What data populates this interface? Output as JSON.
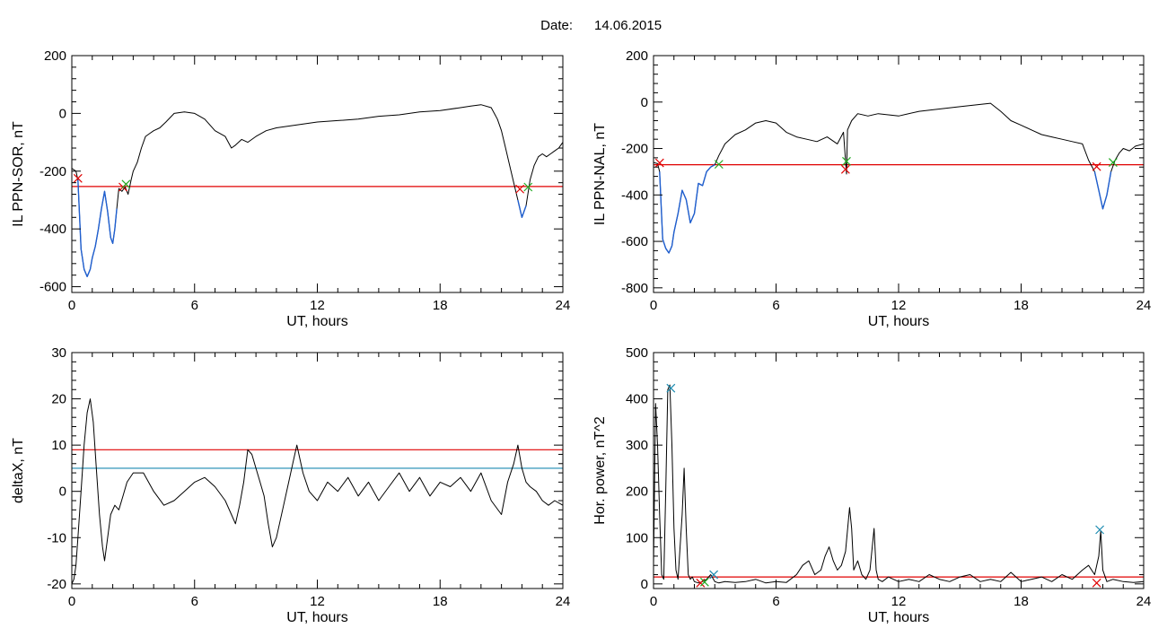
{
  "figure": {
    "date_label": "Date:",
    "date_value": "14.06.2015"
  },
  "chart_data": [
    {
      "type": "line",
      "xlabel": "UT, hours",
      "ylabel": "IL PPN-SOR, nT",
      "xlim": [
        0,
        24
      ],
      "ylim": [
        -620,
        200
      ],
      "xticks": [
        0,
        6,
        12,
        18,
        24
      ],
      "yticks": [
        -600,
        -400,
        -200,
        0,
        200
      ],
      "series": [
        {
          "color": "#000000",
          "x": [
            0,
            0.2,
            0.3,
            0.45,
            0.6,
            0.75,
            0.9,
            1.0,
            1.15,
            1.3,
            1.45,
            1.6,
            1.75,
            1.9,
            2.0,
            2.1,
            2.2,
            2.3,
            2.45,
            2.6,
            2.75,
            2.9,
            3.0,
            3.2,
            3.4,
            3.6,
            3.8,
            4.0,
            4.3,
            4.6,
            5.0,
            5.5,
            6.0,
            6.5,
            7.0,
            7.5,
            7.8,
            8.0,
            8.3,
            8.6,
            9.0,
            9.5,
            10.0,
            11.0,
            12.0,
            13.0,
            14.0,
            15.0,
            16.0,
            17.0,
            18.0,
            19.0,
            19.5,
            20.0,
            20.5,
            20.8,
            21.0,
            21.2,
            21.4,
            21.6,
            21.8,
            22.0,
            22.2,
            22.4,
            22.6,
            22.8,
            23.0,
            23.2,
            23.4,
            23.6,
            23.8,
            24.0
          ],
          "y": [
            -190,
            -200,
            -230,
            -470,
            -540,
            -565,
            -540,
            -500,
            -460,
            -400,
            -330,
            -270,
            -340,
            -430,
            -450,
            -400,
            -330,
            -260,
            -270,
            -255,
            -280,
            -230,
            -200,
            -170,
            -120,
            -80,
            -70,
            -60,
            -50,
            -30,
            0,
            5,
            0,
            -20,
            -60,
            -80,
            -120,
            -110,
            -90,
            -100,
            -80,
            -60,
            -50,
            -40,
            -30,
            -25,
            -20,
            -10,
            -5,
            5,
            10,
            20,
            25,
            30,
            20,
            -20,
            -60,
            -120,
            -180,
            -240,
            -300,
            -360,
            -320,
            -230,
            -180,
            -150,
            -140,
            -150,
            -140,
            -130,
            -120,
            -100
          ]
        },
        {
          "color": "#1f5fd0",
          "x": [
            0.3,
            0.45,
            0.6,
            0.75,
            0.9,
            1.0,
            1.15,
            1.3,
            1.45,
            1.6,
            1.75,
            1.9,
            2.0,
            2.1,
            2.2
          ],
          "y": [
            -230,
            -470,
            -540,
            -565,
            -540,
            -500,
            -460,
            -400,
            -330,
            -270,
            -340,
            -430,
            -450,
            -400,
            -330
          ]
        },
        {
          "color": "#1f5fd0",
          "x": [
            21.8,
            22.0,
            22.2
          ],
          "y": [
            -300,
            -360,
            -320
          ]
        }
      ],
      "thresholds": [
        {
          "y": -253,
          "color": "#e00000"
        }
      ],
      "markers": [
        {
          "x": 0.3,
          "y": -225,
          "color": "#e00000"
        },
        {
          "x": 2.5,
          "y": -255,
          "color": "#e00000"
        },
        {
          "x": 2.65,
          "y": -245,
          "color": "#22aa22"
        },
        {
          "x": 21.9,
          "y": -262,
          "color": "#e00000"
        },
        {
          "x": 22.3,
          "y": -255,
          "color": "#22aa22"
        }
      ]
    },
    {
      "type": "line",
      "xlabel": "UT, hours",
      "ylabel": "IL PPN-NAL, nT",
      "xlim": [
        0,
        24
      ],
      "ylim": [
        -820,
        200
      ],
      "xticks": [
        0,
        6,
        12,
        18,
        24
      ],
      "yticks": [
        -800,
        -600,
        -400,
        -200,
        0,
        200
      ],
      "series": [
        {
          "color": "#000000",
          "x": [
            0,
            0.2,
            0.3,
            0.45,
            0.6,
            0.75,
            0.9,
            1.0,
            1.2,
            1.4,
            1.6,
            1.8,
            2.0,
            2.2,
            2.4,
            2.6,
            2.8,
            3.0,
            3.2,
            3.5,
            4.0,
            4.5,
            5.0,
            5.5,
            6.0,
            6.5,
            7.0,
            7.5,
            8.0,
            8.5,
            9.0,
            9.3,
            9.45,
            9.5,
            9.7,
            10.0,
            10.5,
            11.0,
            12.0,
            13.0,
            14.0,
            15.0,
            16.0,
            16.5,
            17.0,
            17.5,
            18.0,
            18.5,
            19.0,
            19.5,
            20.0,
            20.5,
            21.0,
            21.3,
            21.6,
            21.8,
            22.0,
            22.2,
            22.4,
            22.6,
            22.8,
            23.0,
            23.3,
            23.6,
            24.0
          ],
          "y": [
            -260,
            -265,
            -300,
            -590,
            -630,
            -650,
            -620,
            -560,
            -480,
            -380,
            -420,
            -520,
            -480,
            -350,
            -360,
            -300,
            -280,
            -270,
            -230,
            -180,
            -140,
            -120,
            -90,
            -80,
            -90,
            -130,
            -150,
            -160,
            -170,
            -150,
            -180,
            -130,
            -310,
            -120,
            -80,
            -50,
            -60,
            -50,
            -60,
            -40,
            -30,
            -20,
            -10,
            -5,
            -40,
            -80,
            -100,
            -120,
            -140,
            -150,
            -160,
            -170,
            -180,
            -250,
            -300,
            -380,
            -460,
            -400,
            -300,
            -250,
            -220,
            -200,
            -210,
            -190,
            -180
          ]
        },
        {
          "color": "#1f5fd0",
          "x": [
            0.3,
            0.45,
            0.6,
            0.75,
            0.9,
            1.0,
            1.2,
            1.4,
            1.6,
            1.8,
            2.0,
            2.2,
            2.4,
            2.6,
            2.8,
            3.0
          ],
          "y": [
            -300,
            -590,
            -630,
            -650,
            -620,
            -560,
            -480,
            -380,
            -420,
            -520,
            -480,
            -350,
            -360,
            -300,
            -280,
            -270
          ]
        },
        {
          "color": "#1f5fd0",
          "x": [
            21.6,
            21.8,
            22.0,
            22.2,
            22.4
          ],
          "y": [
            -300,
            -380,
            -460,
            -400,
            -300
          ]
        }
      ],
      "thresholds": [
        {
          "y": -270,
          "color": "#e00000"
        }
      ],
      "markers": [
        {
          "x": 0.3,
          "y": -262,
          "color": "#e00000"
        },
        {
          "x": 3.2,
          "y": -268,
          "color": "#22aa22"
        },
        {
          "x": 9.4,
          "y": -290,
          "color": "#e00000"
        },
        {
          "x": 9.45,
          "y": -255,
          "color": "#22aa22"
        },
        {
          "x": 21.7,
          "y": -278,
          "color": "#e00000"
        },
        {
          "x": 22.5,
          "y": -260,
          "color": "#22aa22"
        }
      ]
    },
    {
      "type": "line",
      "xlabel": "UT, hours",
      "ylabel": "deltaX, nT",
      "xlim": [
        0,
        24
      ],
      "ylim": [
        -21,
        30
      ],
      "xticks": [
        0,
        6,
        12,
        18,
        24
      ],
      "yticks": [
        -20,
        -10,
        0,
        10,
        20,
        30
      ],
      "series": [
        {
          "color": "#000000",
          "x": [
            0,
            0.1,
            0.2,
            0.3,
            0.45,
            0.6,
            0.75,
            0.9,
            1.05,
            1.2,
            1.35,
            1.5,
            1.6,
            1.75,
            1.9,
            2.1,
            2.3,
            2.5,
            2.7,
            3.0,
            3.5,
            4.0,
            4.5,
            5.0,
            5.5,
            6.0,
            6.5,
            7.0,
            7.5,
            7.8,
            8.0,
            8.2,
            8.4,
            8.6,
            8.8,
            9.0,
            9.2,
            9.4,
            9.6,
            9.8,
            10.0,
            10.3,
            10.6,
            10.8,
            11.0,
            11.3,
            11.6,
            12.0,
            12.5,
            13.0,
            13.5,
            14.0,
            14.5,
            15.0,
            15.5,
            16.0,
            16.5,
            17.0,
            17.5,
            18.0,
            18.5,
            19.0,
            19.5,
            20.0,
            20.5,
            21.0,
            21.3,
            21.6,
            21.8,
            22.0,
            22.2,
            22.4,
            22.7,
            23.0,
            23.3,
            23.6,
            24.0
          ],
          "y": [
            -20,
            -19,
            -16,
            -10,
            0,
            10,
            17,
            20,
            15,
            5,
            -5,
            -12,
            -15,
            -10,
            -5,
            -3,
            -4,
            -1,
            2,
            4,
            4,
            0,
            -3,
            -2,
            0,
            2,
            3,
            1,
            -2,
            -5,
            -7,
            -3,
            2,
            9,
            8,
            5,
            2,
            -1,
            -7,
            -12,
            -10,
            -4,
            2,
            6,
            10,
            4,
            0,
            -2,
            2,
            0,
            3,
            -1,
            2,
            -2,
            1,
            4,
            0,
            3,
            -1,
            2,
            1,
            3,
            0,
            4,
            -2,
            -5,
            2,
            6,
            10,
            5,
            2,
            1,
            0,
            -2,
            -3,
            -2,
            -3
          ]
        }
      ],
      "thresholds": [
        {
          "y": 9,
          "color": "#e00000"
        },
        {
          "y": 5,
          "color": "#1a8ab0"
        }
      ],
      "markers": []
    },
    {
      "type": "line",
      "xlabel": "UT, hours",
      "ylabel": "Hor. power, nT^2",
      "xlim": [
        0,
        24
      ],
      "ylim": [
        -10,
        500
      ],
      "xticks": [
        0,
        6,
        12,
        18,
        24
      ],
      "yticks": [
        0,
        100,
        200,
        300,
        400,
        500
      ],
      "series": [
        {
          "color": "#000000",
          "x": [
            0,
            0.1,
            0.2,
            0.3,
            0.4,
            0.5,
            0.6,
            0.7,
            0.8,
            0.9,
            1.0,
            1.1,
            1.2,
            1.3,
            1.4,
            1.5,
            1.6,
            1.7,
            1.8,
            1.9,
            2.0,
            2.2,
            2.4,
            2.6,
            2.8,
            3.0,
            3.2,
            3.5,
            4.0,
            4.5,
            5.0,
            5.5,
            6.0,
            6.5,
            7.0,
            7.3,
            7.6,
            7.9,
            8.2,
            8.4,
            8.6,
            8.8,
            9.0,
            9.2,
            9.4,
            9.6,
            9.7,
            9.8,
            10.0,
            10.2,
            10.4,
            10.6,
            10.8,
            10.9,
            11.0,
            11.2,
            11.5,
            12.0,
            12.5,
            13.0,
            13.5,
            14.0,
            14.5,
            15.0,
            15.5,
            16.0,
            16.5,
            17.0,
            17.5,
            18.0,
            18.5,
            19.0,
            19.5,
            20.0,
            20.5,
            21.0,
            21.3,
            21.6,
            21.8,
            21.9,
            22.0,
            22.2,
            22.5,
            23.0,
            23.5,
            24.0
          ],
          "y": [
            40,
            390,
            300,
            150,
            20,
            10,
            200,
            420,
            430,
            300,
            120,
            30,
            10,
            80,
            150,
            250,
            120,
            20,
            10,
            15,
            5,
            2,
            5,
            10,
            20,
            5,
            2,
            5,
            3,
            5,
            10,
            2,
            5,
            3,
            20,
            40,
            50,
            20,
            30,
            60,
            80,
            50,
            30,
            40,
            70,
            165,
            120,
            30,
            50,
            20,
            10,
            30,
            120,
            30,
            10,
            5,
            15,
            5,
            10,
            5,
            20,
            10,
            5,
            15,
            20,
            5,
            10,
            5,
            25,
            5,
            10,
            15,
            5,
            20,
            10,
            30,
            40,
            20,
            60,
            115,
            30,
            5,
            10,
            5,
            3,
            5
          ]
        }
      ],
      "thresholds": [
        {
          "y": 15,
          "color": "#e00000"
        }
      ],
      "markers": [
        {
          "x": 0.85,
          "y": 423,
          "color": "#1a8ab0"
        },
        {
          "x": 2.3,
          "y": 2,
          "color": "#e00000"
        },
        {
          "x": 2.5,
          "y": 4,
          "color": "#22aa22"
        },
        {
          "x": 2.95,
          "y": 20,
          "color": "#1a8ab0"
        },
        {
          "x": 21.85,
          "y": 117,
          "color": "#1a8ab0"
        },
        {
          "x": 21.7,
          "y": 2,
          "color": "#e00000"
        }
      ]
    }
  ]
}
